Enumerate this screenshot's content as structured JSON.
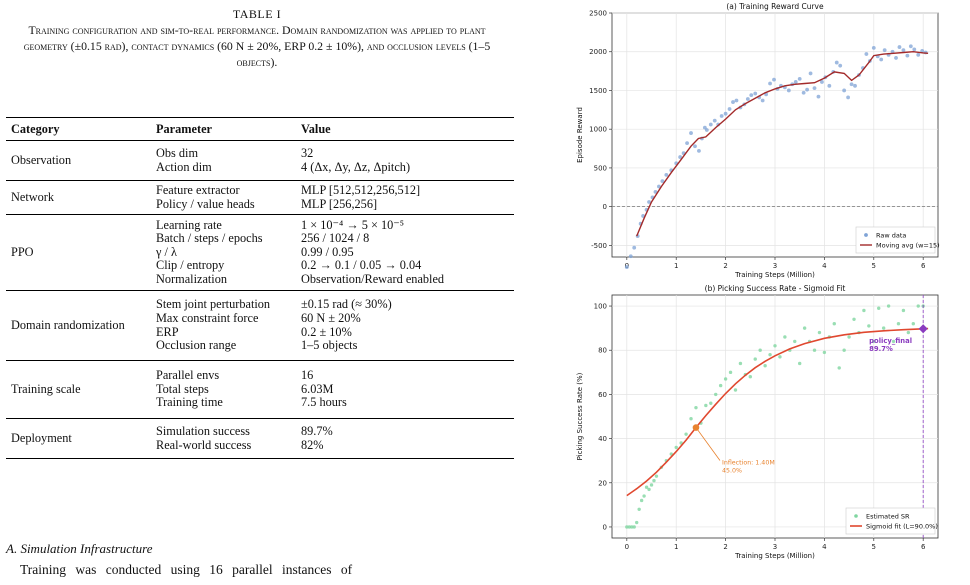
{
  "table": {
    "number": "TABLE I",
    "caption": "Training configuration and sim-to-real performance. Domain randomization was applied to plant geometry (±0.15 rad), contact dynamics (60 N ± 20%, ERP 0.2 ± 10%), and occlusion levels (1–5 objects).",
    "headers": [
      "Category",
      "Parameter",
      "Value"
    ],
    "rows": [
      {
        "category": "Observation",
        "params": [
          "Obs dim",
          "Action dim"
        ],
        "values": [
          "32",
          "4 (Δx, Δy, Δz, Δpitch)"
        ]
      },
      {
        "category": "Network",
        "params": [
          "Feature extractor",
          "Policy / value heads"
        ],
        "values": [
          "MLP [512,512,256,512]",
          "MLP [256,256]"
        ]
      },
      {
        "category": "PPO",
        "params": [
          "Learning rate",
          "Batch / steps / epochs",
          "γ / λ",
          "Clip / entropy",
          "Normalization"
        ],
        "values": [
          "1 × 10⁻⁴ → 5 × 10⁻⁵",
          "256 / 1024 / 8",
          "0.99 / 0.95",
          "0.2 → 0.1 / 0.05 → 0.04",
          "Observation/Reward enabled"
        ]
      },
      {
        "category": "Domain randomization",
        "params": [
          "Stem joint perturbation",
          "Max constraint force",
          "ERP",
          "Occlusion range"
        ],
        "values": [
          "±0.15 rad (≈ 30%)",
          "60 N ± 20%",
          "0.2 ± 10%",
          "1–5 objects"
        ]
      },
      {
        "category": "Training scale",
        "params": [
          "Parallel envs",
          "Total steps",
          "Training time"
        ],
        "values": [
          "16",
          "6.03M",
          "7.5 hours"
        ]
      },
      {
        "category": "Deployment",
        "params": [
          "Simulation success",
          "Real-world success"
        ],
        "values": [
          "89.7%",
          "82%"
        ]
      }
    ]
  },
  "section": {
    "heading": "A. Simulation Infrastructure",
    "paragraph_start": "Training was conducted using 16 parallel instances of"
  },
  "chart_data": [
    {
      "type": "scatter",
      "title": "(a) Training Reward Curve",
      "xlabel": "Training Steps (Million)",
      "ylabel": "Episode Reward",
      "xlim": [
        -0.3,
        6.3
      ],
      "ylim": [
        -650,
        2500
      ],
      "xticks": [
        0,
        1,
        2,
        3,
        4,
        5,
        6
      ],
      "yticks": [
        -500,
        0,
        500,
        1000,
        1500,
        2000,
        2500
      ],
      "grid": true,
      "legend_position": "lower-right",
      "series": [
        {
          "name": "Raw data",
          "kind": "scatter",
          "color": "#7fa3d6",
          "x": [
            0.0,
            0.08,
            0.15,
            0.22,
            0.28,
            0.33,
            0.4,
            0.45,
            0.52,
            0.58,
            0.65,
            0.72,
            0.8,
            0.9,
            1.0,
            1.08,
            1.15,
            1.22,
            1.3,
            1.38,
            1.46,
            1.52,
            1.58,
            1.62,
            1.7,
            1.78,
            1.85,
            1.92,
            2.0,
            2.08,
            2.15,
            2.22,
            2.3,
            2.38,
            2.45,
            2.52,
            2.6,
            2.68,
            2.75,
            2.82,
            2.9,
            2.98,
            3.05,
            3.12,
            3.2,
            3.28,
            3.35,
            3.42,
            3.5,
            3.58,
            3.65,
            3.72,
            3.8,
            3.88,
            3.95,
            4.02,
            4.1,
            4.18,
            4.25,
            4.32,
            4.4,
            4.48,
            4.55,
            4.62,
            4.7,
            4.78,
            4.85,
            4.92,
            5.0,
            5.08,
            5.15,
            5.22,
            5.3,
            5.38,
            5.45,
            5.52,
            5.6,
            5.68,
            5.75,
            5.82,
            5.9,
            5.98,
            6.05
          ],
          "y": [
            -780,
            -640,
            -530,
            -380,
            -220,
            -120,
            -40,
            60,
            120,
            190,
            260,
            330,
            410,
            470,
            560,
            640,
            690,
            820,
            950,
            780,
            720,
            880,
            1020,
            990,
            1060,
            1110,
            1060,
            1170,
            1200,
            1260,
            1350,
            1370,
            1280,
            1320,
            1390,
            1440,
            1460,
            1410,
            1370,
            1450,
            1590,
            1640,
            1520,
            1560,
            1540,
            1500,
            1580,
            1610,
            1650,
            1470,
            1510,
            1720,
            1530,
            1420,
            1610,
            1670,
            1560,
            1740,
            1860,
            1820,
            1500,
            1410,
            1580,
            1560,
            1700,
            1790,
            1970,
            1880,
            2050,
            1940,
            1900,
            2020,
            1960,
            2000,
            1920,
            2060,
            2020,
            1950,
            2070,
            2030,
            1960,
            2010,
            1990
          ]
        },
        {
          "name": "Moving avg (w=15)",
          "kind": "line",
          "color": "#a32a2a",
          "x": [
            0.2,
            0.35,
            0.5,
            0.7,
            0.9,
            1.1,
            1.3,
            1.45,
            1.6,
            1.8,
            2.0,
            2.2,
            2.4,
            2.6,
            2.8,
            3.0,
            3.2,
            3.4,
            3.6,
            3.8,
            4.0,
            4.2,
            4.4,
            4.55,
            4.7,
            4.9,
            5.0,
            5.2,
            5.4,
            5.6,
            5.8,
            6.0,
            6.1
          ],
          "y": [
            -380,
            -150,
            60,
            260,
            440,
            610,
            780,
            880,
            900,
            1020,
            1130,
            1250,
            1330,
            1400,
            1470,
            1520,
            1560,
            1580,
            1590,
            1600,
            1660,
            1740,
            1720,
            1630,
            1700,
            1860,
            1950,
            1970,
            1980,
            1990,
            2000,
            1985,
            1980
          ]
        }
      ]
    },
    {
      "type": "scatter",
      "title": "(b) Picking Success Rate - Sigmoid Fit",
      "xlabel": "Training Steps (Million)",
      "ylabel": "Picking Success Rate (%)",
      "xlim": [
        -0.3,
        6.3
      ],
      "ylim": [
        -5,
        105
      ],
      "xticks": [
        0,
        1,
        2,
        3,
        4,
        5,
        6
      ],
      "yticks": [
        0,
        20,
        40,
        60,
        80,
        100
      ],
      "grid": true,
      "legend_position": "lower-right",
      "series": [
        {
          "name": "Estimated SR",
          "kind": "scatter",
          "color": "#7fd6a0",
          "x": [
            0.0,
            0.05,
            0.1,
            0.15,
            0.2,
            0.25,
            0.3,
            0.35,
            0.4,
            0.45,
            0.5,
            0.55,
            0.6,
            0.7,
            0.8,
            0.9,
            1.0,
            1.1,
            1.2,
            1.3,
            1.4,
            1.5,
            1.6,
            1.7,
            1.8,
            1.9,
            2.0,
            2.1,
            2.2,
            2.3,
            2.4,
            2.5,
            2.6,
            2.7,
            2.8,
            2.9,
            3.0,
            3.1,
            3.2,
            3.3,
            3.4,
            3.5,
            3.6,
            3.7,
            3.8,
            3.9,
            4.0,
            4.1,
            4.2,
            4.3,
            4.4,
            4.5,
            4.6,
            4.7,
            4.8,
            4.9,
            5.0,
            5.1,
            5.2,
            5.3,
            5.4,
            5.5,
            5.6,
            5.7,
            5.8,
            5.9,
            6.0
          ],
          "y": [
            0,
            0,
            0,
            0,
            2,
            8,
            12,
            14,
            18,
            17,
            19,
            21,
            23,
            27,
            30,
            33,
            36,
            38,
            42,
            49,
            54,
            47,
            55,
            56,
            60,
            64,
            67,
            70,
            62,
            74,
            69,
            68,
            76,
            80,
            73,
            78,
            82,
            77,
            86,
            80,
            84,
            74,
            90,
            84,
            80,
            88,
            79,
            86,
            92,
            72,
            80,
            86,
            94,
            88,
            98,
            91,
            84,
            99,
            90,
            100,
            84,
            92,
            98,
            88,
            92,
            100,
            100
          ]
        },
        {
          "name": "Sigmoid fit (L=90.0%)",
          "kind": "line",
          "color": "#e0482f",
          "x": [
            0.0,
            0.2,
            0.4,
            0.6,
            0.8,
            1.0,
            1.2,
            1.4,
            1.6,
            1.8,
            2.0,
            2.2,
            2.4,
            2.6,
            2.8,
            3.0,
            3.3,
            3.6,
            4.0,
            4.4,
            4.8,
            5.2,
            5.6,
            6.0,
            6.1
          ],
          "y": [
            14.2,
            17.3,
            20.8,
            24.8,
            29.3,
            34.1,
            39.3,
            45.0,
            50.4,
            55.5,
            60.4,
            64.8,
            68.7,
            72.1,
            75.0,
            77.5,
            80.6,
            83.0,
            85.4,
            87.0,
            88.1,
            88.8,
            89.3,
            89.7,
            89.8
          ]
        }
      ],
      "annotations": [
        {
          "label_line1": "Inflection: 1.40M",
          "label_line2": "45.0%",
          "x": 1.4,
          "y": 45.0,
          "color": "#e8832f"
        },
        {
          "label_line1": "policy_final",
          "label_line2": "89.7%",
          "x": 6.0,
          "y": 89.7,
          "color": "#8a3bbf"
        }
      ]
    }
  ]
}
